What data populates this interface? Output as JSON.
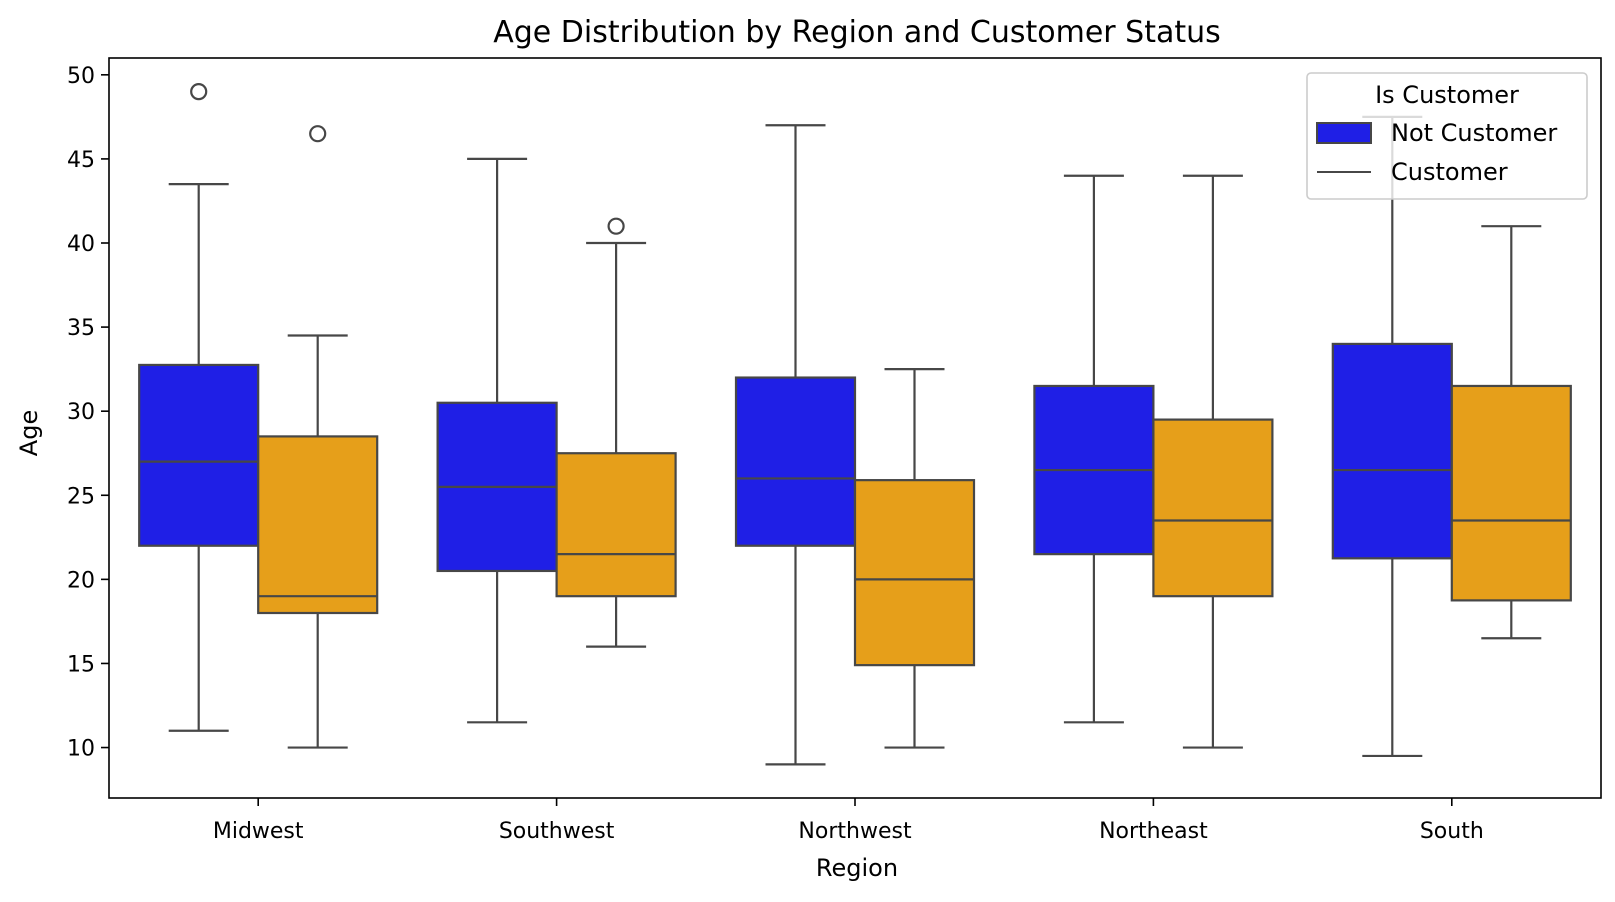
{
  "chart_data": {
    "type": "box",
    "title": "Age Distribution by Region and Customer Status",
    "xlabel": "Region",
    "ylabel": "Age",
    "categories": [
      "Midwest",
      "Southwest",
      "Northwest",
      "Northeast",
      "South"
    ],
    "ylim": [
      7,
      51
    ],
    "yticks": [
      10,
      15,
      20,
      25,
      30,
      35,
      40,
      45,
      50
    ],
    "grid": false,
    "legend": {
      "title": "Is Customer",
      "placement": "top-right",
      "entries": [
        "Not Customer",
        "Customer"
      ]
    },
    "series": [
      {
        "name": "Not Customer",
        "color": "#1f1fe6",
        "boxes": [
          {
            "whisker_low": 11,
            "q1": 22,
            "median": 27,
            "q3": 32.75,
            "whisker_high": 43.5,
            "outliers": [
              49
            ]
          },
          {
            "whisker_low": 11.5,
            "q1": 20.5,
            "median": 25.5,
            "q3": 30.5,
            "whisker_high": 45,
            "outliers": []
          },
          {
            "whisker_low": 9,
            "q1": 22,
            "median": 26,
            "q3": 32,
            "whisker_high": 47,
            "outliers": []
          },
          {
            "whisker_low": 11.5,
            "q1": 21.5,
            "median": 26.5,
            "q3": 31.5,
            "whisker_high": 44,
            "outliers": []
          },
          {
            "whisker_low": 9.5,
            "q1": 21.25,
            "median": 26.5,
            "q3": 34,
            "whisker_high": 47.5,
            "outliers": []
          }
        ]
      },
      {
        "name": "Customer",
        "color": "#e69f1a",
        "boxes": [
          {
            "whisker_low": 10,
            "q1": 18,
            "median": 19,
            "q3": 28.5,
            "whisker_high": 34.5,
            "outliers": [
              46.5
            ]
          },
          {
            "whisker_low": 16,
            "q1": 19,
            "median": 21.5,
            "q3": 27.5,
            "whisker_high": 40,
            "outliers": [
              41
            ]
          },
          {
            "whisker_low": 10,
            "q1": 14.9,
            "median": 20,
            "q3": 25.9,
            "whisker_high": 32.5,
            "outliers": []
          },
          {
            "whisker_low": 10,
            "q1": 19,
            "median": 23.5,
            "q3": 29.5,
            "whisker_high": 44,
            "outliers": []
          },
          {
            "whisker_low": 16.5,
            "q1": 18.75,
            "median": 23.5,
            "q3": 31.5,
            "whisker_high": 41,
            "outliers": []
          }
        ]
      }
    ]
  }
}
